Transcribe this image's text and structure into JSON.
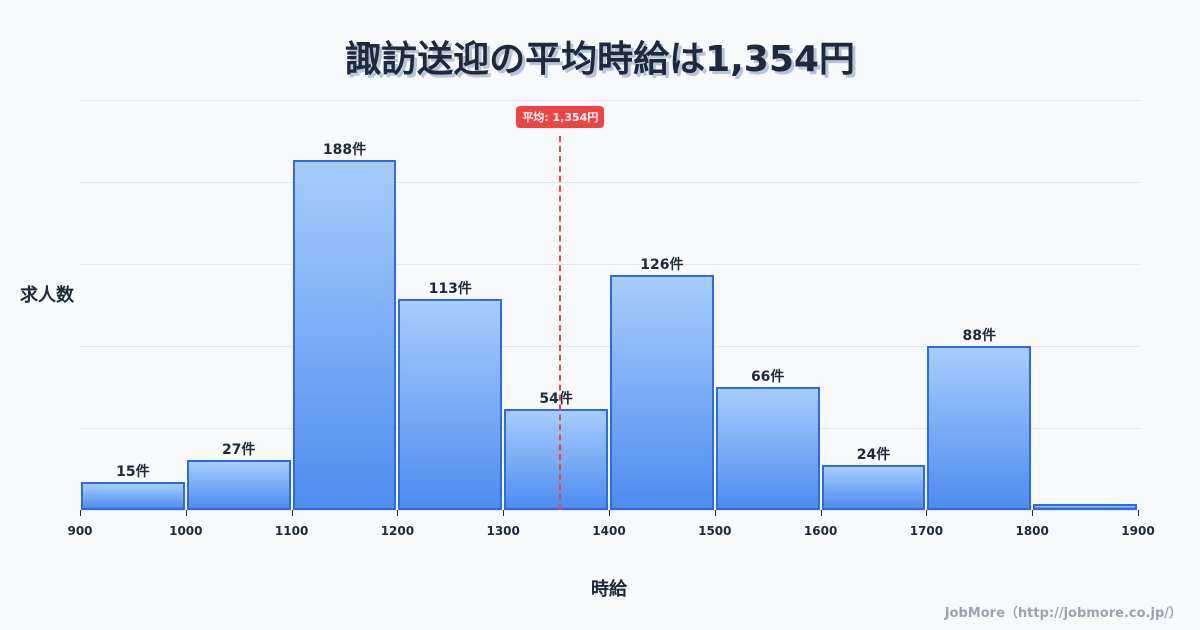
{
  "title": "諏訪送迎の平均時給は1,354円",
  "y_axis_label": "求人数",
  "x_axis_label": "時給",
  "credit": "JobMore（http://jobmore.co.jp/）",
  "mean_label": "平均: 1,354円",
  "colors": {
    "bar_top": "#a6cdfb",
    "bar_bottom": "#4f8cf0",
    "bar_border": "#2f6ae0",
    "mean_line": "#ef4444",
    "text": "#1e293b"
  },
  "x_ticks": [
    "900",
    "1000",
    "1100",
    "1200",
    "1300",
    "1400",
    "1500",
    "1600",
    "1700",
    "1800",
    "1900"
  ],
  "bar_labels": [
    "15件",
    "27件",
    "188件",
    "113件",
    "54件",
    "126件",
    "66件",
    "24件",
    "88件",
    ""
  ],
  "chart_data": {
    "type": "bar",
    "title": "諏訪送迎の平均時給は1,354円",
    "xlabel": "時給",
    "ylabel": "求人数",
    "categories": [
      "900-1000",
      "1000-1100",
      "1100-1200",
      "1200-1300",
      "1300-1400",
      "1400-1500",
      "1500-1600",
      "1600-1700",
      "1700-1800",
      "1800-1900"
    ],
    "bin_edges": [
      900,
      1000,
      1100,
      1200,
      1300,
      1400,
      1500,
      1600,
      1700,
      1800,
      1900
    ],
    "values": [
      15,
      27,
      188,
      113,
      54,
      126,
      66,
      24,
      88,
      3
    ],
    "unit": "件",
    "ylim": [
      0,
      220
    ],
    "xlim": [
      900,
      1900
    ],
    "grid": true,
    "annotations": [
      {
        "type": "vline",
        "x": 1354,
        "label": "平均: 1,354円",
        "style": "dashed",
        "color": "#ef4444"
      }
    ]
  }
}
